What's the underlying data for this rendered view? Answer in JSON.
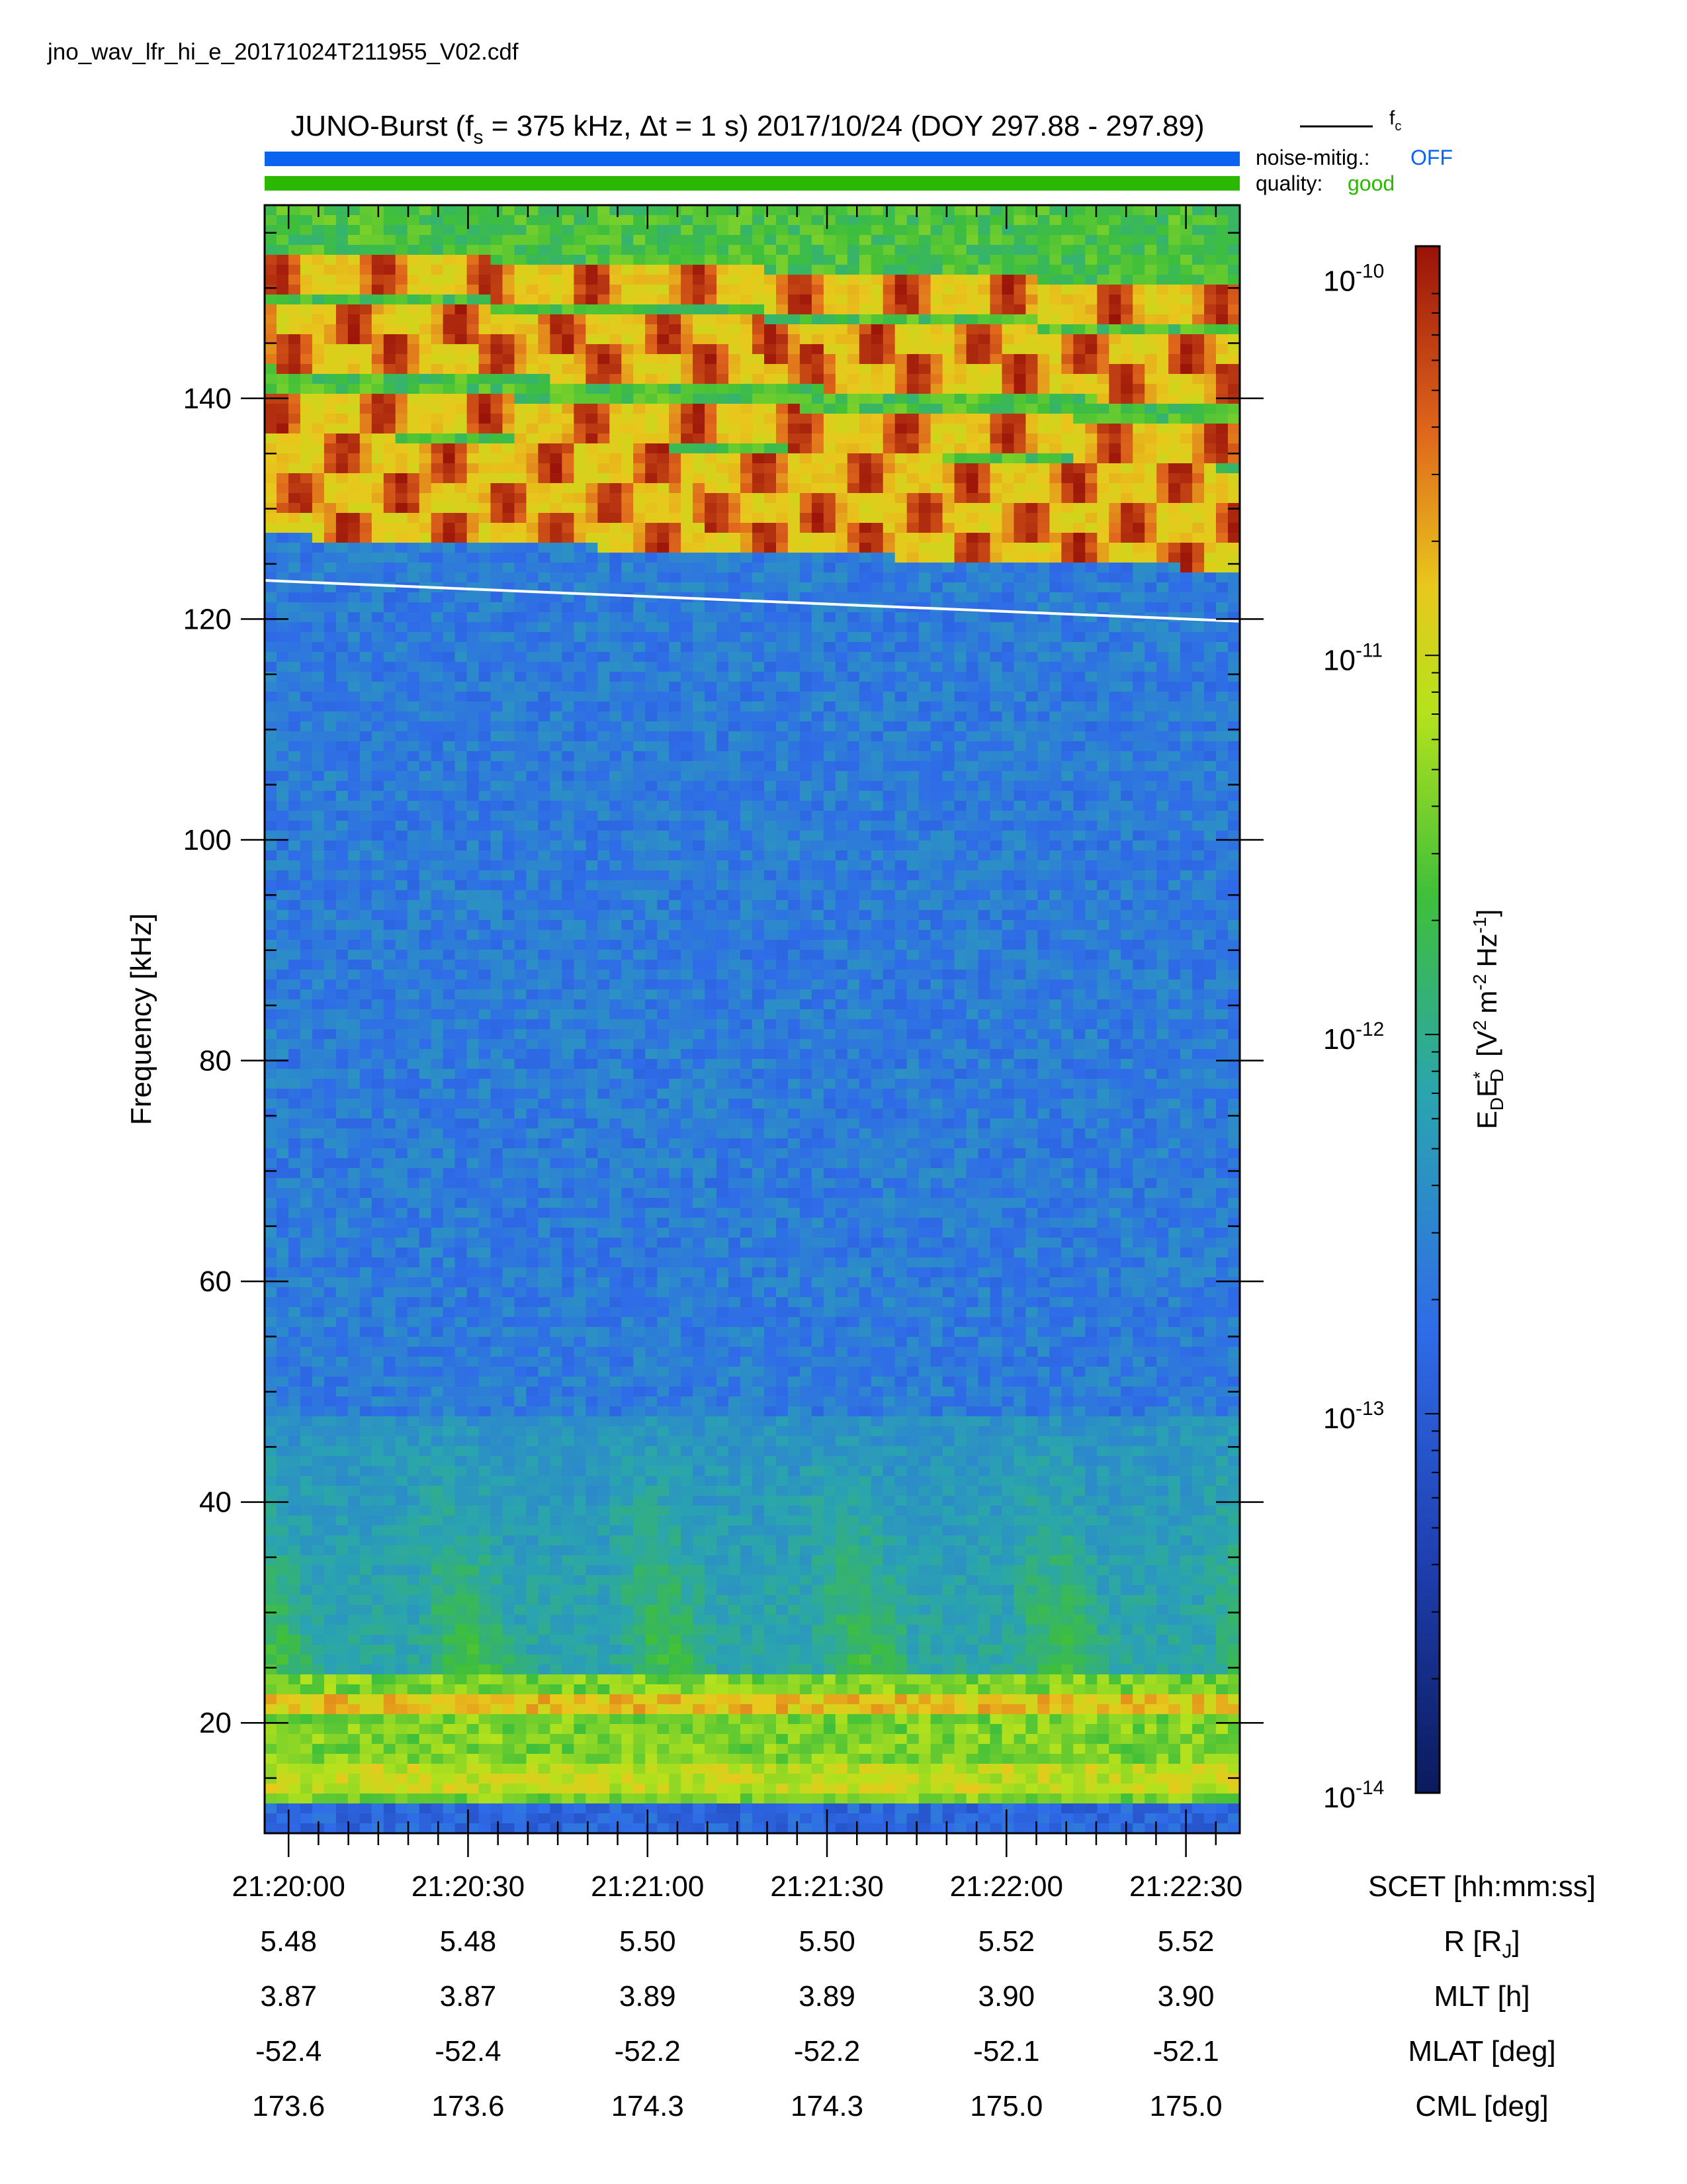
{
  "filename": "jno_wav_lfr_hi_e_20171024T211955_V02.cdf",
  "title": {
    "prefix": "JUNO-Burst (f",
    "fs_sub": "s",
    "mid": " = 375 kHz, Δt = 1 s)  2017/10/24 (DOY 297.88 - 297.89)"
  },
  "legend": {
    "fc_label": "f",
    "fc_sub": "c",
    "noise_label": "noise-mitig.:",
    "noise_value": "OFF",
    "noise_color": "#0a64f0",
    "quality_label": "quality:",
    "quality_value": "good",
    "quality_color": "#2ab800"
  },
  "chart_data": {
    "type": "heatmap",
    "ylabel": "Frequency [kHz]",
    "ylim": [
      10,
      157.5
    ],
    "y_ticks": [
      20,
      40,
      60,
      80,
      100,
      120,
      140
    ],
    "x_ticks": [
      "21:20:00",
      "21:20:30",
      "21:21:00",
      "21:21:30",
      "21:22:00",
      "21:22:30"
    ],
    "x_seconds_range": [
      0,
      163
    ],
    "x_tick_seconds": [
      4,
      34,
      64,
      94,
      124,
      154
    ],
    "fc_line": {
      "start_khz": 123.5,
      "end_khz": 119.8
    },
    "colorbar": {
      "label_main": "E",
      "label_unit": "[V",
      "scale": "log",
      "range": [
        1e-14,
        1.2e-10
      ],
      "ticks": [
        {
          "base": "10",
          "exp": "-10",
          "value": 1e-10
        },
        {
          "base": "10",
          "exp": "-11",
          "value": 1e-11
        },
        {
          "base": "10",
          "exp": "-12",
          "value": 1e-12
        },
        {
          "base": "10",
          "exp": "-13",
          "value": 1e-13
        },
        {
          "base": "10",
          "exp": "-14",
          "value": 1e-14
        }
      ]
    },
    "ephemeris": [
      {
        "label": "SCET [hh:mm:ss]",
        "values": [
          "21:20:00",
          "21:20:30",
          "21:21:00",
          "21:21:30",
          "21:22:00",
          "21:22:30"
        ]
      },
      {
        "label": "R [R",
        "label_sub": "J",
        "label_end": "]",
        "values": [
          "5.48",
          "5.48",
          "5.50",
          "5.50",
          "5.52",
          "5.52"
        ]
      },
      {
        "label": "MLT [h]",
        "values": [
          "3.87",
          "3.87",
          "3.89",
          "3.89",
          "3.90",
          "3.90"
        ]
      },
      {
        "label": "MLAT [deg]",
        "values": [
          "-52.4",
          "-52.4",
          "-52.2",
          "-52.2",
          "-52.1",
          "-52.1"
        ]
      },
      {
        "label": "CML [deg]",
        "values": [
          "173.6",
          "173.6",
          "174.3",
          "174.3",
          "175.0",
          "175.0"
        ]
      }
    ]
  }
}
